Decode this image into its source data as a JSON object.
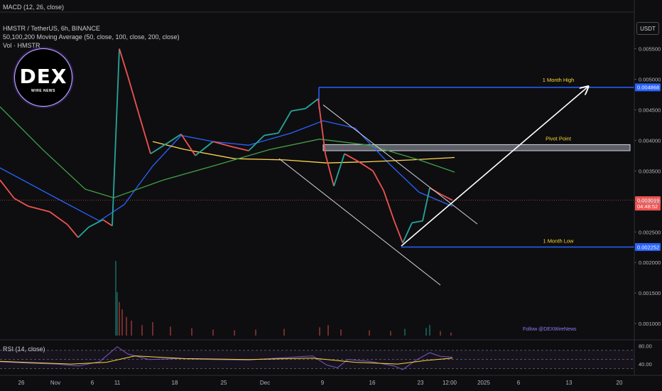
{
  "indicators": {
    "macd": "MACD (12, 26, close)",
    "symbol": "HMSTR / TetherUS, 6h, BINANCE",
    "ma": "50,100,200 Moving Average (50, close, 100, close, 200, close)",
    "vol": "Vol · HMSTR",
    "rsi": "RSI (14, close)"
  },
  "currency_button": "USDT",
  "logo": {
    "title": "DEX",
    "subtitle": "WIRE NEWS"
  },
  "watermark": "Follow @DEXWireNews",
  "price_badges": {
    "high": "0.004868",
    "current": "0.003019",
    "countdown": "04:48:52",
    "low": "0.002252"
  },
  "colors": {
    "up": "#26a69a",
    "down": "#ef5350",
    "ma50": "#2962ff",
    "ma100": "#ffd54f",
    "ma200": "#43a047",
    "level_line": "#2962ff",
    "rsi": "#7e57c2",
    "rsi_ma": "#fdd835"
  },
  "chart_data": {
    "type": "candlestick",
    "y_axis": {
      "ticks": [
        "0.005500",
        "0.005000",
        "0.004500",
        "0.004000",
        "0.003500",
        "0.003000",
        "0.002500",
        "0.002000",
        "0.001500",
        "0.001000"
      ],
      "range": [
        0.00085,
        0.0061
      ]
    },
    "x_axis": {
      "ticks": [
        "26",
        "Nov",
        "6",
        "11",
        "18",
        "25",
        "Dec",
        "9",
        "16",
        "23",
        "12:00",
        "2025",
        "6",
        "13",
        "20"
      ]
    },
    "rsi_axis": {
      "ticks": [
        "80.00",
        "40.00"
      ],
      "range": [
        20,
        90
      ],
      "bands": [
        70,
        50,
        30
      ]
    },
    "annotations": [
      {
        "label": "1 Month High",
        "value": 0.004868
      },
      {
        "label": "Pivot Point",
        "from": 0.00383,
        "to": 0.00393
      },
      {
        "label": "1 Month Low",
        "value": 0.002252
      }
    ],
    "prices": [
      {
        "t": 0,
        "p": 0.00335
      },
      {
        "t": 20,
        "p": 0.00305
      },
      {
        "t": 40,
        "p": 0.00292
      },
      {
        "t": 70,
        "p": 0.00283
      },
      {
        "t": 95,
        "p": 0.00262
      },
      {
        "t": 110,
        "p": 0.00241
      },
      {
        "t": 125,
        "p": 0.00258
      },
      {
        "t": 145,
        "p": 0.0027
      },
      {
        "t": 158,
        "p": 0.0026
      },
      {
        "t": 168,
        "p": 0.0055
      },
      {
        "t": 180,
        "p": 0.00505
      },
      {
        "t": 195,
        "p": 0.00445
      },
      {
        "t": 212,
        "p": 0.00378
      },
      {
        "t": 235,
        "p": 0.00395
      },
      {
        "t": 255,
        "p": 0.0041
      },
      {
        "t": 275,
        "p": 0.00375
      },
      {
        "t": 300,
        "p": 0.00398
      },
      {
        "t": 325,
        "p": 0.0039
      },
      {
        "t": 350,
        "p": 0.00383
      },
      {
        "t": 372,
        "p": 0.00408
      },
      {
        "t": 392,
        "p": 0.00412
      },
      {
        "t": 410,
        "p": 0.00448
      },
      {
        "t": 430,
        "p": 0.00452
      },
      {
        "t": 448,
        "p": 0.00468
      },
      {
        "t": 458,
        "p": 0.00378
      },
      {
        "t": 470,
        "p": 0.00325
      },
      {
        "t": 485,
        "p": 0.00378
      },
      {
        "t": 505,
        "p": 0.00365
      },
      {
        "t": 525,
        "p": 0.0035
      },
      {
        "t": 540,
        "p": 0.00318
      },
      {
        "t": 555,
        "p": 0.00268
      },
      {
        "t": 567,
        "p": 0.00232
      },
      {
        "t": 580,
        "p": 0.00265
      },
      {
        "t": 595,
        "p": 0.00268
      },
      {
        "t": 605,
        "p": 0.00322
      },
      {
        "t": 620,
        "p": 0.00312
      },
      {
        "t": 637,
        "p": 0.003019
      }
    ],
    "series": [
      {
        "name": "MA 50",
        "color": "#2962ff",
        "points": [
          {
            "t": 0,
            "p": 0.00355
          },
          {
            "t": 80,
            "p": 0.00305
          },
          {
            "t": 140,
            "p": 0.00268
          },
          {
            "t": 175,
            "p": 0.00295
          },
          {
            "t": 215,
            "p": 0.00358
          },
          {
            "t": 255,
            "p": 0.00408
          },
          {
            "t": 300,
            "p": 0.00398
          },
          {
            "t": 350,
            "p": 0.00392
          },
          {
            "t": 410,
            "p": 0.00412
          },
          {
            "t": 455,
            "p": 0.00432
          },
          {
            "t": 500,
            "p": 0.0042
          },
          {
            "t": 545,
            "p": 0.00365
          },
          {
            "t": 590,
            "p": 0.00315
          },
          {
            "t": 637,
            "p": 0.00292
          }
        ]
      },
      {
        "name": "MA 100",
        "color": "#ffd54f",
        "points": [
          {
            "t": 215,
            "p": 0.00398
          },
          {
            "t": 260,
            "p": 0.00385
          },
          {
            "t": 330,
            "p": 0.0037
          },
          {
            "t": 400,
            "p": 0.00368
          },
          {
            "t": 460,
            "p": 0.00363
          },
          {
            "t": 520,
            "p": 0.00365
          },
          {
            "t": 580,
            "p": 0.00368
          },
          {
            "t": 640,
            "p": 0.00372
          }
        ]
      },
      {
        "name": "MA 200",
        "color": "#43a047",
        "points": [
          {
            "t": 0,
            "p": 0.00455
          },
          {
            "t": 60,
            "p": 0.00385
          },
          {
            "t": 120,
            "p": 0.0032
          },
          {
            "t": 160,
            "p": 0.00306
          },
          {
            "t": 230,
            "p": 0.00335
          },
          {
            "t": 300,
            "p": 0.00358
          },
          {
            "t": 380,
            "p": 0.00385
          },
          {
            "t": 450,
            "p": 0.00402
          },
          {
            "t": 520,
            "p": 0.00392
          },
          {
            "t": 590,
            "p": 0.00368
          },
          {
            "t": 640,
            "p": 0.00348
          }
        ]
      }
    ],
    "drawings": [
      {
        "kind": "channel-line",
        "color": "#d1d4dc",
        "from": {
          "t": 455,
          "p": 0.00458
        },
        "to": {
          "t": 672,
          "p": 0.00263
        }
      },
      {
        "kind": "channel-line",
        "color": "#d1d4dc",
        "from": {
          "t": 393,
          "p": 0.0037
        },
        "to": {
          "t": 620,
          "p": 0.00163
        }
      },
      {
        "kind": "arrow",
        "color": "#ffffff",
        "from": {
          "t": 565,
          "p": 0.00227
        },
        "to": {
          "t": 828,
          "p": 0.00488
        }
      }
    ],
    "volume": [
      {
        "t": 163,
        "v": 100
      },
      {
        "t": 165,
        "v": 58
      },
      {
        "t": 168,
        "v": 45
      },
      {
        "t": 172,
        "v": 35
      },
      {
        "t": 178,
        "v": 25
      },
      {
        "t": 185,
        "v": 20
      },
      {
        "t": 200,
        "v": 14
      },
      {
        "t": 215,
        "v": 18
      },
      {
        "t": 240,
        "v": 12
      },
      {
        "t": 270,
        "v": 10
      },
      {
        "t": 300,
        "v": 8
      },
      {
        "t": 330,
        "v": 7
      },
      {
        "t": 360,
        "v": 8
      },
      {
        "t": 400,
        "v": 9
      },
      {
        "t": 450,
        "v": 11
      },
      {
        "t": 462,
        "v": 14
      },
      {
        "t": 480,
        "v": 8
      },
      {
        "t": 520,
        "v": 7
      },
      {
        "t": 550,
        "v": 6
      },
      {
        "t": 570,
        "v": 9
      },
      {
        "t": 600,
        "v": 10
      },
      {
        "t": 605,
        "v": 14
      },
      {
        "t": 620,
        "v": 6
      },
      {
        "t": 635,
        "v": 4
      }
    ],
    "rsi": [
      {
        "t": 0,
        "v": 45
      },
      {
        "t": 40,
        "v": 42
      },
      {
        "t": 80,
        "v": 40
      },
      {
        "t": 110,
        "v": 36
      },
      {
        "t": 140,
        "v": 45
      },
      {
        "t": 165,
        "v": 78
      },
      {
        "t": 180,
        "v": 62
      },
      {
        "t": 210,
        "v": 50
      },
      {
        "t": 250,
        "v": 52
      },
      {
        "t": 300,
        "v": 50
      },
      {
        "t": 350,
        "v": 49
      },
      {
        "t": 400,
        "v": 54
      },
      {
        "t": 440,
        "v": 58
      },
      {
        "t": 460,
        "v": 38
      },
      {
        "t": 475,
        "v": 32
      },
      {
        "t": 490,
        "v": 50
      },
      {
        "t": 520,
        "v": 46
      },
      {
        "t": 555,
        "v": 36
      },
      {
        "t": 567,
        "v": 28
      },
      {
        "t": 585,
        "v": 48
      },
      {
        "t": 605,
        "v": 65
      },
      {
        "t": 620,
        "v": 57
      },
      {
        "t": 637,
        "v": 55
      }
    ],
    "rsi_ma": [
      {
        "t": 0,
        "v": 46
      },
      {
        "t": 100,
        "v": 40
      },
      {
        "t": 150,
        "v": 44
      },
      {
        "t": 190,
        "v": 58
      },
      {
        "t": 260,
        "v": 52
      },
      {
        "t": 350,
        "v": 50
      },
      {
        "t": 440,
        "v": 53
      },
      {
        "t": 500,
        "v": 44
      },
      {
        "t": 560,
        "v": 40
      },
      {
        "t": 600,
        "v": 48
      },
      {
        "t": 637,
        "v": 53
      }
    ]
  }
}
